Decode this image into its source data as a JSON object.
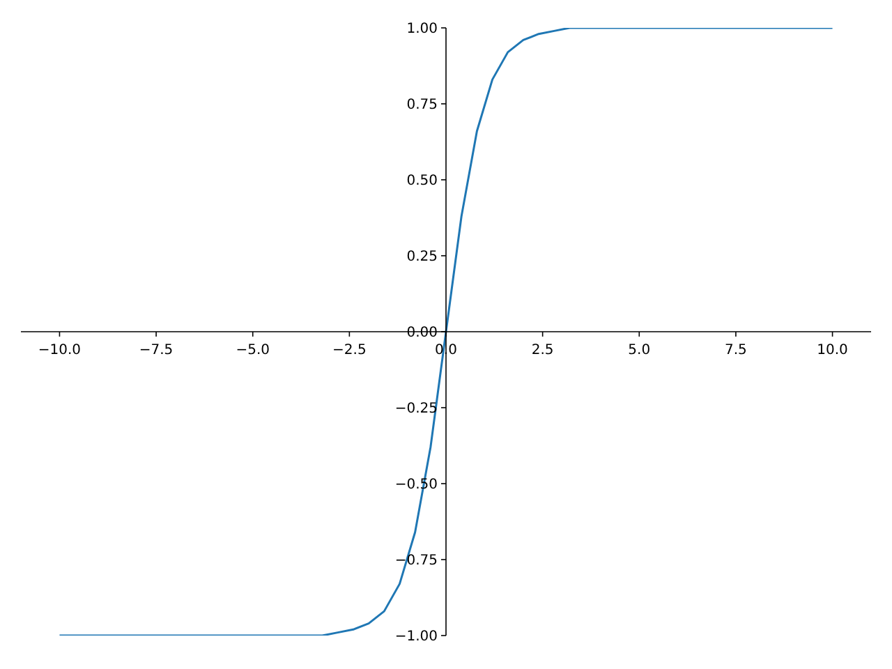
{
  "chart_data": {
    "type": "line",
    "x": [
      -10,
      -9.6,
      -9.2,
      -8.8,
      -8.4,
      -8,
      -7.6,
      -7.2,
      -6.8,
      -6.4,
      -6,
      -5.6,
      -5.2,
      -4.8,
      -4.4,
      -4,
      -3.6,
      -3.2,
      -2.8,
      -2.4,
      -2,
      -1.6,
      -1.2,
      -0.8,
      -0.4,
      0,
      0.4,
      0.8,
      1.2,
      1.6,
      2,
      2.4,
      2.8,
      3.2,
      3.6,
      4,
      4.4,
      4.8,
      5.2,
      5.6,
      6,
      6.4,
      6.8,
      7.2,
      7.6,
      8,
      8.4,
      8.8,
      9.2,
      9.6,
      10
    ],
    "series": [
      {
        "color": "#1f77b4",
        "values": [
          -1,
          -1,
          -1,
          -1,
          -1,
          -1,
          -1,
          -1,
          -1,
          -1,
          -1,
          -1,
          -1,
          -1,
          -1,
          -1,
          -1,
          -1,
          -0.99,
          -0.98,
          -0.96,
          -0.92,
          -0.83,
          -0.66,
          -0.38,
          0,
          0.38,
          0.66,
          0.83,
          0.92,
          0.96,
          0.98,
          0.99,
          1,
          1,
          1,
          1,
          1,
          1,
          1,
          1,
          1,
          1,
          1,
          1,
          1,
          1,
          1,
          1,
          1,
          1
        ]
      }
    ],
    "xlim": [
      -11,
      11
    ],
    "xticks": [
      {
        "value": -10,
        "label": "−10.0"
      },
      {
        "value": -7.5,
        "label": "−7.5"
      },
      {
        "value": -5,
        "label": "−5.0"
      },
      {
        "value": -2.5,
        "label": "−2.5"
      },
      {
        "value": 0,
        "label": "0.0"
      },
      {
        "value": 2.5,
        "label": "2.5"
      },
      {
        "value": 5,
        "label": "5.0"
      },
      {
        "value": 7.5,
        "label": "7.5"
      },
      {
        "value": 10,
        "label": "10.0"
      }
    ],
    "ylim": [
      -1,
      1
    ],
    "yticks": [
      {
        "value": -1,
        "label": "−1.00"
      },
      {
        "value": -0.75,
        "label": "−0.75"
      },
      {
        "value": -0.5,
        "label": "−0.50"
      },
      {
        "value": -0.25,
        "label": "−0.25"
      },
      {
        "value": 0,
        "label": "0.00"
      },
      {
        "value": 0.25,
        "label": "0.25"
      },
      {
        "value": 0.5,
        "label": "0.50"
      },
      {
        "value": 0.75,
        "label": "0.75"
      },
      {
        "value": 1,
        "label": "1.00"
      }
    ]
  }
}
